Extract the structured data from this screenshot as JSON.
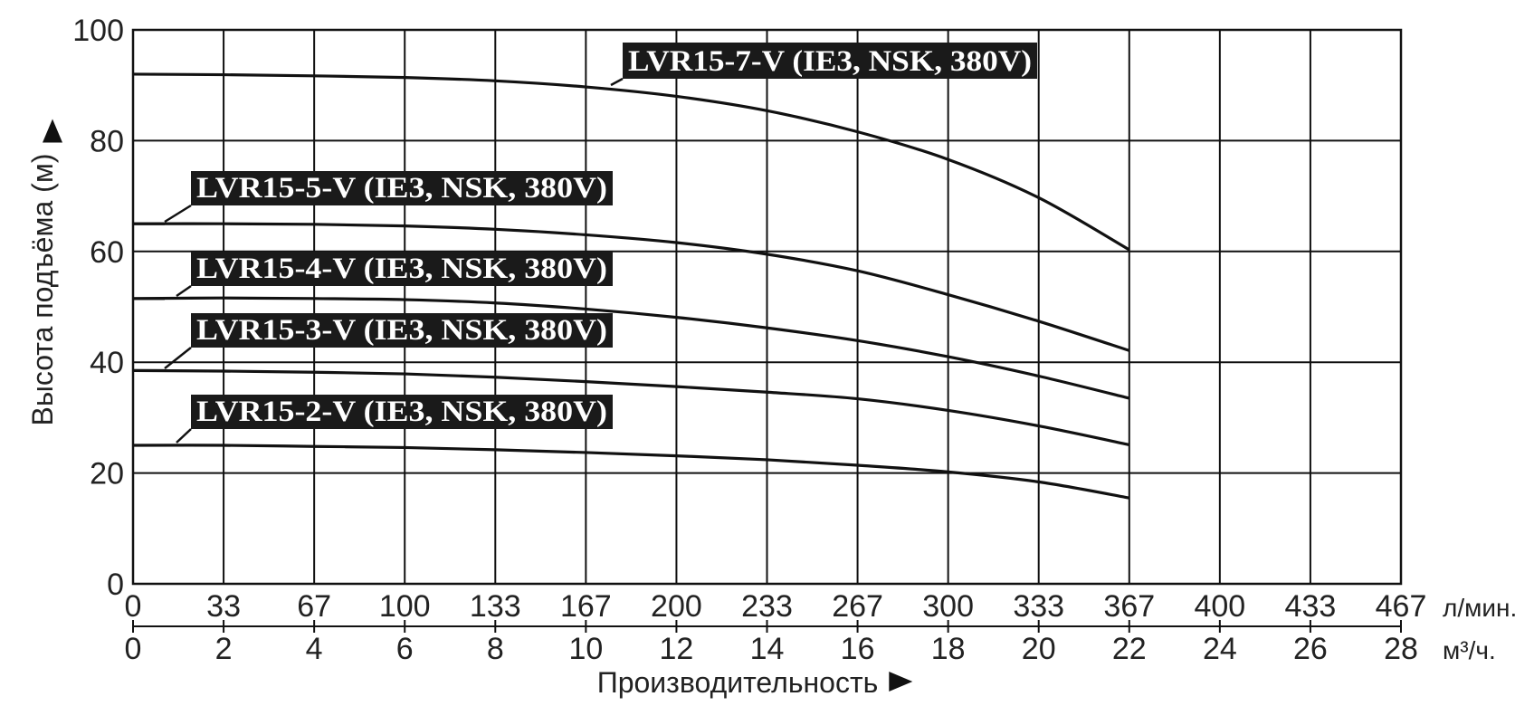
{
  "chart_data": {
    "type": "line",
    "ylabel": "Высота подъёма (м)",
    "xlabel": "Производительность",
    "ylim": [
      0,
      100
    ],
    "yticks": [
      0,
      20,
      40,
      60,
      80,
      100
    ],
    "xlim": [
      0,
      28
    ],
    "x_unit_secondary": "м³/ч.",
    "x_unit_primary": "л/мин.",
    "xticks_m3h": [
      "0",
      "2",
      "4",
      "6",
      "8",
      "10",
      "12",
      "14",
      "16",
      "18",
      "20",
      "22",
      "24",
      "26",
      "28"
    ],
    "xticks_lmin": [
      "0",
      "33",
      "67",
      "100",
      "133",
      "167",
      "200",
      "233",
      "267",
      "300",
      "333",
      "367",
      "400",
      "433",
      "467"
    ],
    "grid": true,
    "series": [
      {
        "name": "LVR15-7-V (IE3, NSK, 380V)",
        "x": [
          0,
          2,
          4,
          6,
          8,
          10,
          12,
          14,
          16,
          18,
          20,
          22
        ],
        "y": [
          92,
          91.9,
          91.7,
          91.4,
          90.8,
          89.7,
          88,
          85.4,
          81.6,
          76.6,
          69.7,
          60.3
        ]
      },
      {
        "name": "LVR15-5-V (IE3, NSK, 380V)",
        "x": [
          0,
          2,
          4,
          6,
          8,
          10,
          12,
          14,
          16,
          18,
          20,
          22
        ],
        "y": [
          65,
          65,
          64.9,
          64.6,
          64,
          63,
          61.6,
          59.5,
          56.5,
          52.2,
          47.4,
          42.1
        ]
      },
      {
        "name": "LVR15-4-V (IE3, NSK, 380V)",
        "x": [
          0,
          2,
          4,
          6,
          8,
          10,
          12,
          14,
          16,
          18,
          20,
          22
        ],
        "y": [
          51.5,
          51.6,
          51.5,
          51.3,
          50.7,
          49.6,
          48.1,
          46.2,
          43.9,
          41,
          37.5,
          33.5
        ]
      },
      {
        "name": "LVR15-3-V (IE3, NSK, 380V)",
        "x": [
          0,
          2,
          4,
          6,
          8,
          10,
          12,
          14,
          16,
          18,
          20,
          22
        ],
        "y": [
          38.5,
          38.4,
          38.2,
          37.9,
          37.3,
          36.5,
          35.6,
          34.6,
          33.4,
          31.3,
          28.5,
          25.1
        ]
      },
      {
        "name": "LVR15-2-V (IE3, NSK, 380V)",
        "x": [
          0,
          2,
          4,
          6,
          8,
          10,
          12,
          14,
          16,
          18,
          20,
          22
        ],
        "y": [
          25,
          25,
          24.8,
          24.6,
          24.2,
          23.7,
          23.1,
          22.4,
          21.4,
          20.2,
          18.4,
          15.5
        ]
      }
    ]
  }
}
